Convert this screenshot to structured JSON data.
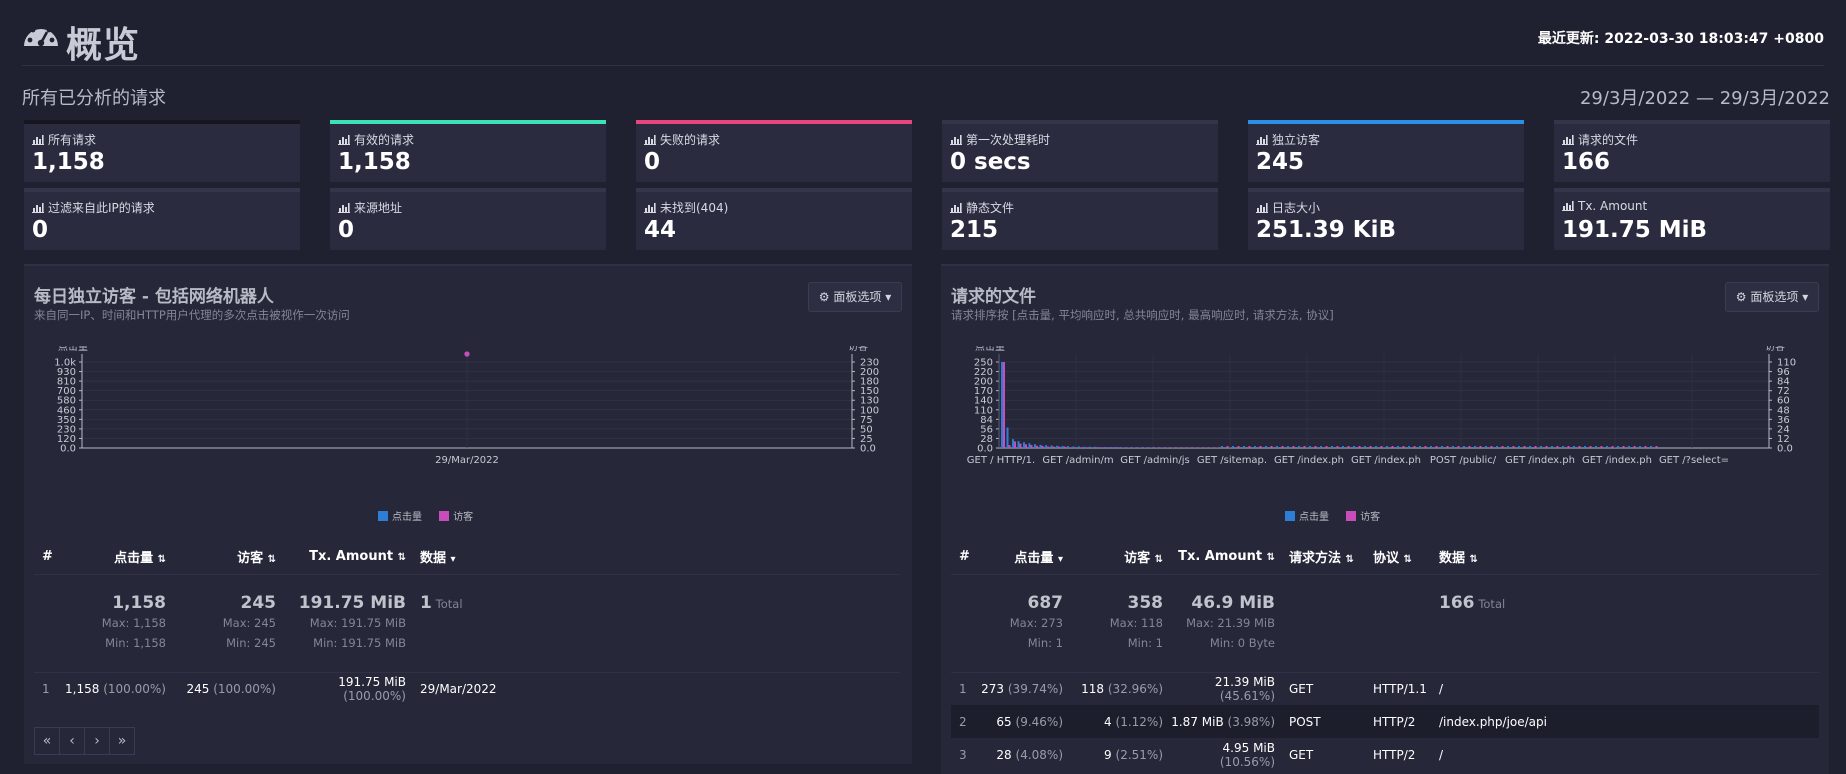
{
  "header": {
    "title": "概览",
    "updated": "最近更新: 2022-03-30 18:03:47 +0800"
  },
  "section": {
    "title": "所有已分析的请求",
    "date_range": "29/3月/2022 — 29/3月/2022"
  },
  "stats": [
    {
      "label": "所有请求",
      "value": "1,158",
      "accent": "#15161f"
    },
    {
      "label": "有效的请求",
      "value": "1,158",
      "accent": "#3ee0b5"
    },
    {
      "label": "失败的请求",
      "value": "0",
      "accent": "#e8457f"
    },
    {
      "label": "第一次处理耗时",
      "value": "0 secs",
      "accent": "#33354a"
    },
    {
      "label": "独立访客",
      "value": "245",
      "accent": "#2b8fe6"
    },
    {
      "label": "请求的文件",
      "value": "166",
      "accent": "#33354a"
    },
    {
      "label": "过滤来自此IP的请求",
      "value": "0",
      "accent": "#33354a"
    },
    {
      "label": "来源地址",
      "value": "0",
      "accent": "#33354a"
    },
    {
      "label": "未找到(404)",
      "value": "44",
      "accent": "#33354a"
    },
    {
      "label": "静态文件",
      "value": "215",
      "accent": "#33354a"
    },
    {
      "label": "日志大小",
      "value": "251.39 KiB",
      "accent": "#33354a"
    },
    {
      "label": "Tx. Amount",
      "value": "191.75 MiB",
      "accent": "#33354a"
    }
  ],
  "visitors_panel": {
    "title": "每日独立访客 - 包括网络机器人",
    "subtitle": "来自同一IP、时间和HTTP用户代理的多次点击被视作一次访问",
    "options_label": "面板选项",
    "table": {
      "headers": [
        "#",
        "点击量",
        "访客",
        "Tx. Amount",
        "数据"
      ],
      "summary": {
        "hits": "1,158",
        "visitors": "245",
        "tx": "191.75 MiB",
        "data": "1",
        "data_suffix": "Total",
        "hits_max": "Max: 1,158",
        "hits_min": "Min: 1,158",
        "visitors_max": "Max: 245",
        "visitors_min": "Min: 245",
        "tx_max": "Max: 191.75 MiB",
        "tx_min": "Min: 191.75 MiB"
      },
      "rows": [
        {
          "n": "1",
          "hits": "1,158",
          "hits_pct": "(100.00%)",
          "visitors": "245",
          "visitors_pct": "(100.00%)",
          "tx": "191.75 MiB",
          "tx_pct": "(100.00%)",
          "data": "29/Mar/2022"
        }
      ]
    },
    "pager": [
      "«",
      "‹",
      "›",
      "»"
    ]
  },
  "files_panel": {
    "title": "请求的文件",
    "subtitle": "请求排序按 [点击量, 平均响应时, 总共响应时, 最高响应时, 请求方法, 协议]",
    "options_label": "面板选项",
    "table": {
      "headers": [
        "#",
        "点击量",
        "访客",
        "Tx. Amount",
        "请求方法",
        "协议",
        "数据"
      ],
      "summary": {
        "hits": "687",
        "visitors": "358",
        "tx": "46.9 MiB",
        "data": "166",
        "data_suffix": "Total",
        "hits_max": "Max: 273",
        "hits_min": "Min: 1",
        "visitors_max": "Max: 118",
        "visitors_min": "Min: 1",
        "tx_max": "Max: 21.39 MiB",
        "tx_min": "Min: 0 Byte"
      },
      "rows": [
        {
          "n": "1",
          "hits": "273",
          "hits_pct": "(39.74%)",
          "visitors": "118",
          "visitors_pct": "(32.96%)",
          "tx": "21.39 MiB",
          "tx_pct": "(45.61%)",
          "method": "GET",
          "proto": "HTTP/1.1",
          "data": "/"
        },
        {
          "n": "2",
          "hits": "65",
          "hits_pct": "(9.46%)",
          "visitors": "4",
          "visitors_pct": "(1.12%)",
          "tx": "1.87 MiB",
          "tx_pct": "(3.98%)",
          "method": "POST",
          "proto": "HTTP/2",
          "data": "/index.php/joe/api"
        },
        {
          "n": "3",
          "hits": "28",
          "hits_pct": "(4.08%)",
          "visitors": "9",
          "visitors_pct": "(2.51%)",
          "tx": "4.95 MiB",
          "tx_pct": "(10.56%)",
          "method": "GET",
          "proto": "HTTP/2",
          "data": "/"
        }
      ]
    }
  },
  "chart_data": [
    {
      "type": "scatter",
      "ylabel": "点击量",
      "y2label": "访客",
      "categories": [
        "29/Mar/2022"
      ],
      "yticks": [
        "1.0k",
        "930",
        "810",
        "700",
        "580",
        "460",
        "350",
        "230",
        "120",
        "0.0"
      ],
      "y2ticks": [
        "230",
        "200",
        "180",
        "150",
        "130",
        "100",
        "75",
        "50",
        "25",
        "0.0"
      ],
      "ylim": [
        0,
        1158
      ],
      "y2lim": [
        0,
        245
      ],
      "series": [
        {
          "name": "点击量",
          "color": "#2d7fd6",
          "values": [
            1158
          ]
        },
        {
          "name": "访客",
          "color": "#c64dba",
          "values": [
            245
          ]
        }
      ],
      "legend": "bottom"
    },
    {
      "type": "bar",
      "ylabel": "点击量",
      "y2label": "访客",
      "xticks": [
        "GET / HTTP/1.",
        "GET /admin/m",
        "GET /admin/js",
        "GET /sitemap.",
        "GET /index.ph",
        "GET /index.ph",
        "POST /public/",
        "GET /index.ph",
        "GET /index.ph",
        "GET /?select="
      ],
      "yticks": [
        "250",
        "220",
        "200",
        "170",
        "140",
        "110",
        "84",
        "56",
        "28",
        "0.0"
      ],
      "y2ticks": [
        "110",
        "96",
        "84",
        "72",
        "60",
        "48",
        "36",
        "24",
        "12",
        "0.0"
      ],
      "ylim": [
        0,
        273
      ],
      "y2lim": [
        0,
        118
      ],
      "series": [
        {
          "name": "点击量",
          "color": "#2d7fd6",
          "values": [
            273,
            65,
            28,
            22,
            18,
            15,
            12,
            10,
            9,
            8,
            7,
            6,
            6,
            5,
            5,
            4,
            4,
            4,
            3,
            3,
            3,
            3,
            2,
            2,
            2,
            2,
            2,
            2,
            2,
            2,
            1,
            1,
            1,
            1,
            1,
            1,
            1,
            1,
            1,
            1
          ]
        },
        {
          "name": "访客",
          "color": "#c64dba",
          "values": [
            118,
            4,
            9,
            6,
            5,
            4,
            3,
            3,
            2,
            2,
            2,
            2,
            1,
            1,
            1,
            1,
            1,
            1,
            1,
            1,
            1,
            1,
            1,
            1,
            1,
            1,
            1,
            1,
            1,
            1,
            1,
            1,
            1,
            1,
            1,
            1,
            1,
            1,
            1,
            1
          ]
        }
      ],
      "legend": "bottom"
    }
  ]
}
